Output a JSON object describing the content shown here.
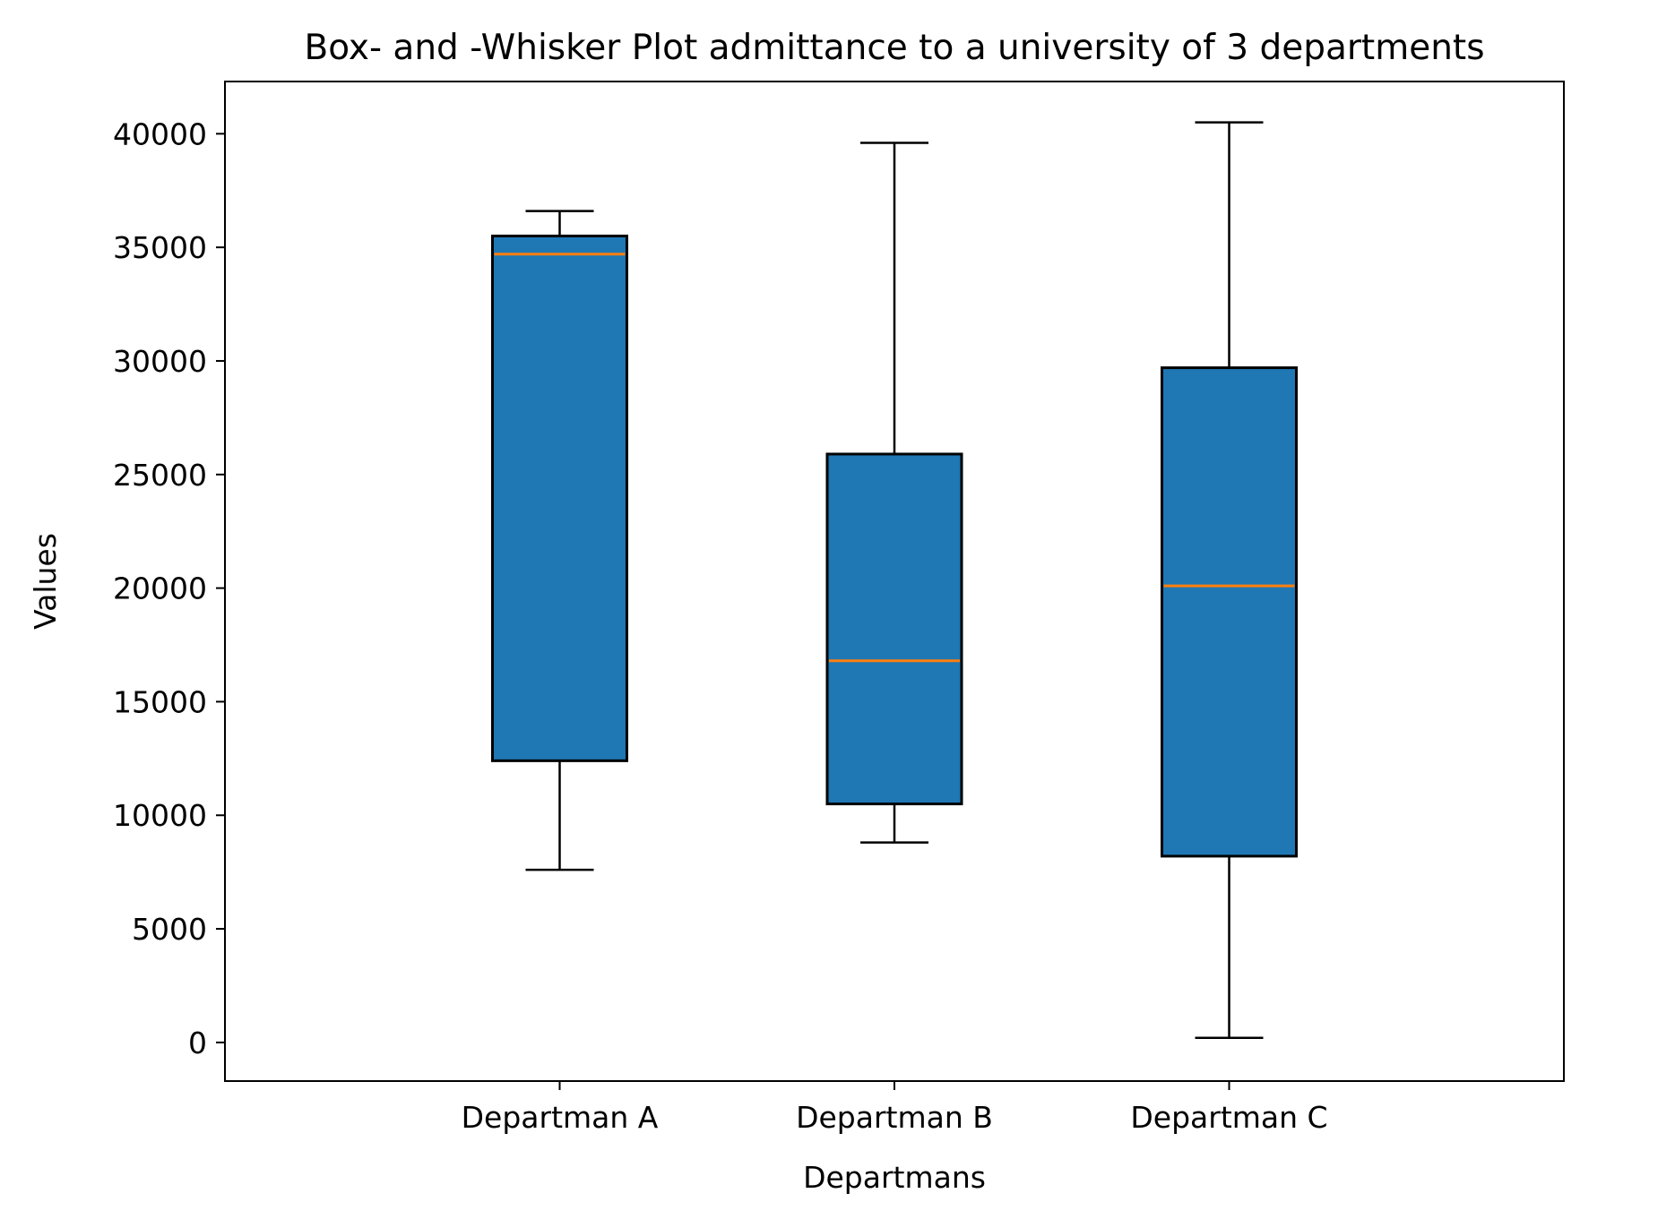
{
  "chart_data": {
    "type": "box",
    "title": "Box- and -Whisker Plot admittance to a university of 3 departments",
    "xlabel": "Departmans",
    "ylabel": "Values",
    "ylim": [
      -1700,
      42300
    ],
    "yticks": [
      0,
      5000,
      10000,
      15000,
      20000,
      25000,
      30000,
      35000,
      40000
    ],
    "grid": false,
    "box_color": "#1f77b4",
    "median_color": "#ff7f0e",
    "categories": [
      "Departman A",
      "Departman B",
      "Departman C"
    ],
    "boxes": [
      {
        "name": "Departman A",
        "whisker_low": 7600,
        "q1": 12400,
        "median": 34700,
        "q3": 35500,
        "whisker_high": 36600
      },
      {
        "name": "Departman B",
        "whisker_low": 8800,
        "q1": 10500,
        "median": 16800,
        "q3": 25900,
        "whisker_high": 39600
      },
      {
        "name": "Departman C",
        "whisker_low": 200,
        "q1": 8200,
        "median": 20100,
        "q3": 29700,
        "whisker_high": 40500
      }
    ]
  }
}
